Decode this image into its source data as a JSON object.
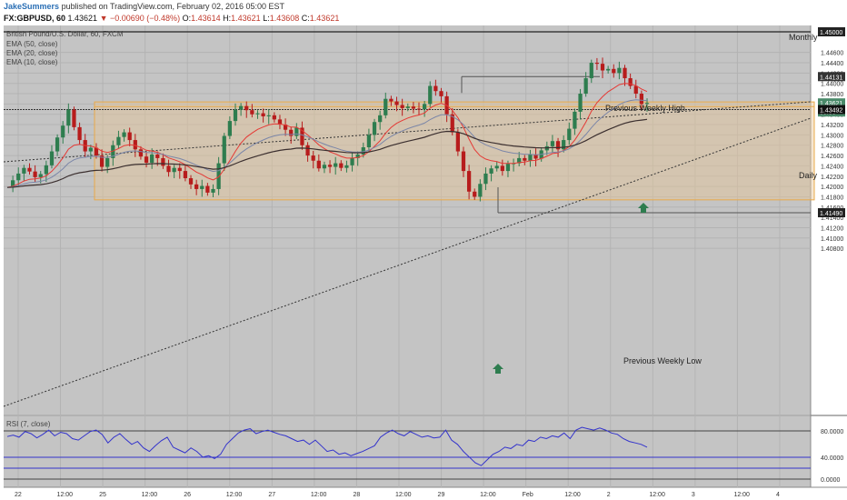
{
  "header": {
    "author": "JakeSummers",
    "published_text": "published on TradingView.com, February 02, 2016 05:00 EST",
    "symbol": "FX:GBPUSD, 60",
    "last": "1.43621",
    "change": "▼ −0.00690 (−0.48%)",
    "open_label": "O:",
    "open": "1.43614",
    "high_label": "H:",
    "high": "1.43621",
    "low_label": "L:",
    "low": "1.43608",
    "close_label": "C:",
    "close": "1.43621"
  },
  "legend": {
    "instrument": "British Pound/U.S. Dollar, 60, FXCM",
    "ema50": "EMA (50, close)",
    "ema20": "EMA (20, close)",
    "ema10": "EMA (10, close)"
  },
  "rsi": {
    "label": "RSI (7, close)"
  },
  "annotations": {
    "monthly": "Monthly",
    "daily": "Daily",
    "prev_weekly_high": "Previous Weekly High",
    "prev_weekly_low": "Previous Weekly Low",
    "price_tags": [
      "1.45000",
      "1.44131",
      "1.43621",
      "59:56",
      "1.43492",
      "1.41490"
    ]
  },
  "colors": {
    "bull": "#2e7d4f",
    "bear": "#b71c1c",
    "ema10": "#e53935",
    "ema20": "#7b86a8",
    "ema50": "#3b2f2f",
    "rsi": "#3333cc",
    "zone": "#e8a94a",
    "background": "#c4c4c4"
  },
  "chart_data": {
    "type": "candlestick",
    "symbol": "FX:GBPUSD",
    "timeframe": "60",
    "ylim": [
      1.4,
      1.45
    ],
    "y_ticks": [
      "1.45000",
      "1.44600",
      "1.44400",
      "1.44200",
      "1.44000",
      "1.43800",
      "1.43600",
      "1.43400",
      "1.43200",
      "1.43000",
      "1.42800",
      "1.42600",
      "1.42400",
      "1.42200",
      "1.42000",
      "1.41800",
      "1.41600",
      "1.41400",
      "1.41200",
      "1.41000",
      "1.40800"
    ],
    "x_ticks": [
      "22",
      "12:00",
      "25",
      "12:00",
      "26",
      "12:00",
      "27",
      "12:00",
      "28",
      "12:00",
      "29",
      "12:00",
      "Feb",
      "12:00",
      "2",
      "12:00",
      "3",
      "12:00",
      "4"
    ],
    "rsi_ticks": [
      "80.0000",
      "40.0000",
      "0.0000"
    ],
    "levels": {
      "monthly": 1.45,
      "prev_weekly_high": 1.44131,
      "last_price": 1.43621,
      "daily": 1.43492,
      "prev_weekly_low": 1.4149,
      "zone_top": 1.4364,
      "zone_bottom": 1.4174
    },
    "closes": [
      1.4198,
      1.4212,
      1.4225,
      1.4236,
      1.4229,
      1.4218,
      1.4224,
      1.4241,
      1.4268,
      1.4295,
      1.4318,
      1.4349,
      1.4315,
      1.429,
      1.4268,
      1.4275,
      1.426,
      1.4238,
      1.4255,
      1.428,
      1.4296,
      1.4305,
      1.429,
      1.4272,
      1.4258,
      1.4246,
      1.4262,
      1.4255,
      1.424,
      1.4228,
      1.4236,
      1.423,
      1.4216,
      1.4204,
      1.4195,
      1.4201,
      1.4188,
      1.4195,
      1.4245,
      1.4298,
      1.4327,
      1.4349,
      1.4356,
      1.4348,
      1.434,
      1.4342,
      1.4336,
      1.4338,
      1.433,
      1.432,
      1.431,
      1.4298,
      1.4314,
      1.428,
      1.426,
      1.425,
      1.4235,
      1.4242,
      1.4238,
      1.4245,
      1.4236,
      1.4241,
      1.4255,
      1.4262,
      1.4276,
      1.43,
      1.4325,
      1.4338,
      1.437,
      1.4365,
      1.4358,
      1.4352,
      1.4355,
      1.4351,
      1.435,
      1.436,
      1.4395,
      1.4385,
      1.4375,
      1.434,
      1.4305,
      1.4268,
      1.423,
      1.419,
      1.418,
      1.4205,
      1.4225,
      1.4235,
      1.424,
      1.423,
      1.4244,
      1.4245,
      1.4255,
      1.425,
      1.4262,
      1.4254,
      1.427,
      1.4278,
      1.4288,
      1.4272,
      1.429,
      1.4312,
      1.4345,
      1.438,
      1.441,
      1.444,
      1.4438,
      1.4425,
      1.4428,
      1.442,
      1.443,
      1.441,
      1.4395,
      1.438,
      1.436,
      1.4362
    ],
    "rsi_values": [
      51,
      53,
      50,
      58,
      55,
      49,
      54,
      60,
      52,
      57,
      55,
      48,
      46,
      52,
      58,
      60,
      54,
      42,
      50,
      55,
      47,
      40,
      44,
      35,
      30,
      38,
      45,
      50,
      36,
      32,
      28,
      35,
      30,
      22,
      24,
      20,
      26,
      40,
      48,
      56,
      60,
      62,
      55,
      58,
      60,
      57,
      54,
      52,
      48,
      44,
      46,
      40,
      46,
      38,
      30,
      32,
      26,
      28,
      24,
      27,
      30,
      34,
      38,
      50,
      56,
      60,
      55,
      52,
      58,
      54,
      50,
      52,
      49,
      50,
      60,
      46,
      40,
      30,
      22,
      14,
      10,
      18,
      26,
      30,
      36,
      34,
      40,
      38,
      46,
      44,
      50,
      48,
      52,
      50,
      56,
      48,
      60,
      64,
      62,
      60,
      63,
      60,
      56,
      54,
      48,
      44,
      42,
      40,
      36
    ],
    "rsi_ylim": [
      0,
      100
    ],
    "ema_lengths": [
      10,
      20,
      50
    ]
  }
}
